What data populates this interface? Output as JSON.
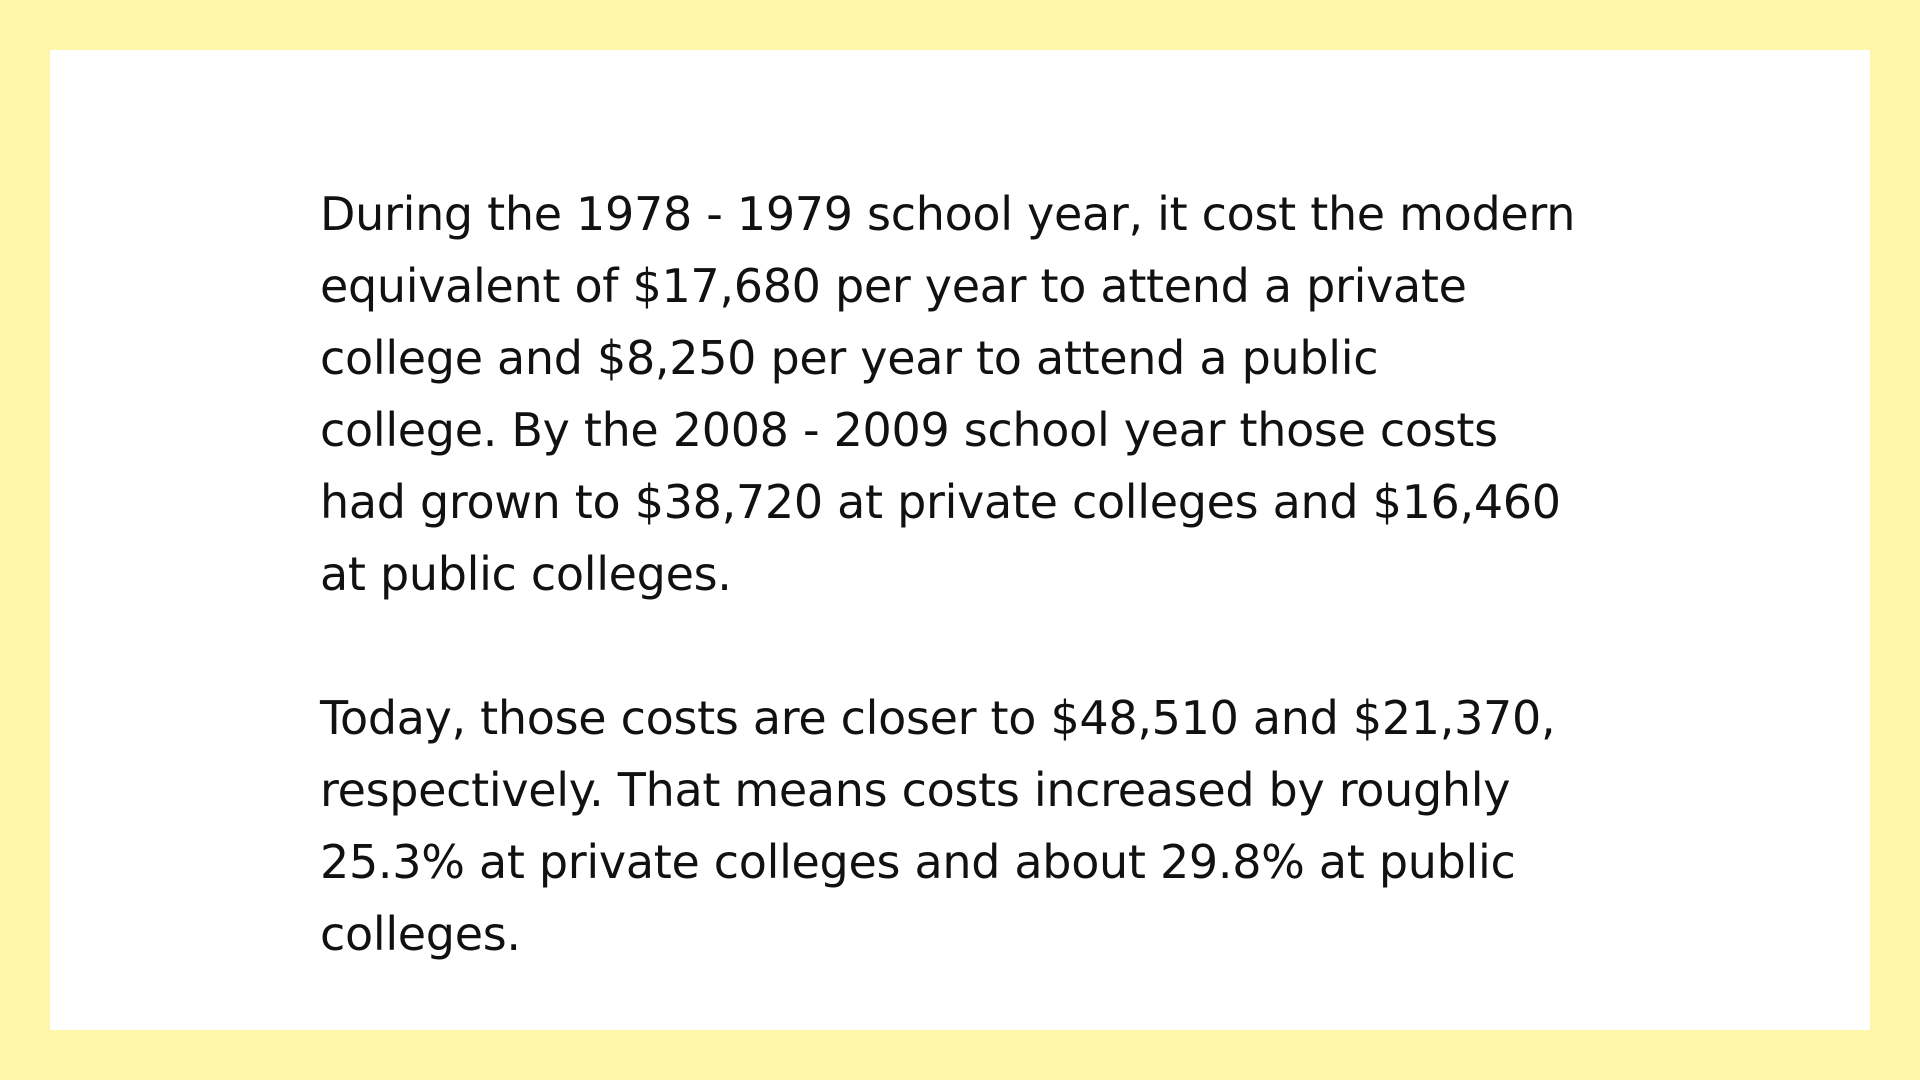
{
  "colors": {
    "background": "#fef6a8",
    "card": "#ffffff",
    "text": "#111111"
  },
  "paragraphs": [
    {
      "lines": [
        "During the 1978 - 1979 school year, it cost the modern",
        "equivalent of $17,680 per year to attend a private",
        "college and $8,250 per year to attend a public",
        "college. By the 2008 - 2009 school year those costs",
        "had grown to $38,720 at private colleges and $16,460",
        "at public colleges."
      ]
    },
    {
      "lines": [
        "Today, those costs are closer to $48,510 and $21,370,",
        "respectively. That means costs increased by roughly",
        "25.3% at private colleges and about 29.8% at public",
        "colleges."
      ]
    }
  ]
}
